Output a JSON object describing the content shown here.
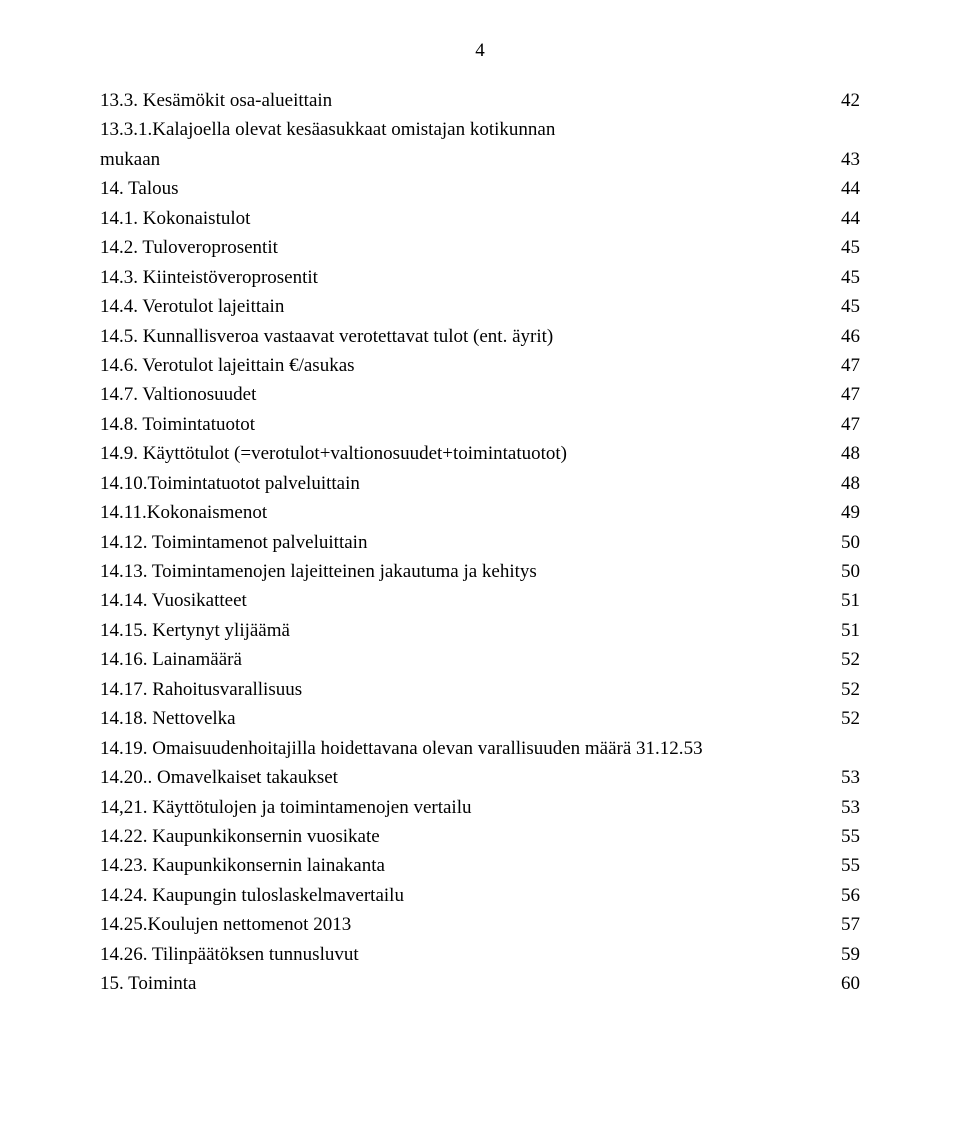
{
  "pageNumber": "4",
  "toc": [
    {
      "title": "13.3. Kesämökit osa-alueittain",
      "page": "42",
      "wrap": false
    },
    {
      "title": "13.3.1.Kalajoella olevat kesäasukkaat omistajan kotikunnan",
      "extra": "mukaan",
      "page": "43",
      "wrap": true
    },
    {
      "title": "14. Talous",
      "page": "44",
      "wrap": false
    },
    {
      "title": "14.1. Kokonaistulot",
      "page": "44",
      "wrap": false
    },
    {
      "title": "14.2. Tuloveroprosentit",
      "page": "45",
      "wrap": false
    },
    {
      "title": "14.3. Kiinteistöveroprosentit",
      "page": "45",
      "wrap": false
    },
    {
      "title": "14.4. Verotulot lajeittain",
      "page": "45",
      "wrap": false
    },
    {
      "title": "14.5. Kunnallisveroa vastaavat verotettavat tulot (ent. äyrit)",
      "page": "46",
      "wrap": false
    },
    {
      "title": "14.6. Verotulot lajeittain €/asukas",
      "page": "47",
      "wrap": false
    },
    {
      "title": "14.7. Valtionosuudet",
      "page": "47",
      "wrap": false
    },
    {
      "title": "14.8. Toimintatuotot",
      "page": "47",
      "wrap": false
    },
    {
      "title": "14.9. Käyttötulot (=verotulot+valtionosuudet+toimintatuotot)",
      "page": "48",
      "wrap": false
    },
    {
      "title": "14.10.Toimintatuotot palveluittain",
      "page": "48",
      "wrap": false
    },
    {
      "title": "14.11.Kokonaismenot",
      "page": "49",
      "wrap": false
    },
    {
      "title": "14.12. Toimintamenot palveluittain",
      "page": "50",
      "wrap": false
    },
    {
      "title": "14.13. Toimintamenojen lajeitteinen jakautuma ja kehitys",
      "page": "50",
      "wrap": false
    },
    {
      "title": "14.14. Vuosikatteet",
      "page": "51",
      "wrap": false
    },
    {
      "title": "14.15. Kertynyt ylijäämä",
      "page": "51",
      "wrap": false
    },
    {
      "title": "14.16. Lainamäärä",
      "page": "52",
      "wrap": false
    },
    {
      "title": "14.17. Rahoitusvarallisuus",
      "page": "52",
      "wrap": false
    },
    {
      "title": "14.18. Nettovelka",
      "page": "52",
      "wrap": false
    },
    {
      "title": "14.19. Omaisuudenhoitajilla hoidettavana olevan varallisuuden määrä 31.12.",
      "page": "53",
      "wrap": false,
      "nodots": true
    },
    {
      "title": "14.20.. Omavelkaiset takaukset",
      "page": "53",
      "wrap": false
    },
    {
      "title": "14,21. Käyttötulojen ja toimintamenojen vertailu",
      "page": "53",
      "wrap": false
    },
    {
      "title": "14.22. Kaupunkikonsernin vuosikate",
      "page": "55",
      "wrap": false
    },
    {
      "title": "14.23. Kaupunkikonsernin lainakanta",
      "page": "55",
      "wrap": false
    },
    {
      "title": "14.24. Kaupungin tuloslaskelmavertailu",
      "page": "56",
      "wrap": false
    },
    {
      "title": "14.25.Koulujen nettomenot 2013",
      "page": "57",
      "wrap": false
    },
    {
      "title": "14.26. Tilinpäätöksen tunnusluvut",
      "page": "59",
      "wrap": false
    },
    {
      "title": "15. Toiminta",
      "page": "60",
      "wrap": false
    }
  ]
}
